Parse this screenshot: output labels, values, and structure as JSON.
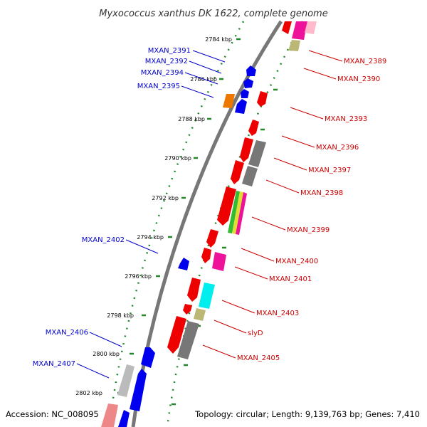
{
  "title": "Myxococcus xanthus DK 1622, complete genome",
  "footer": {
    "accession": "Accession: NC_008095",
    "summary": "Topology: circular; Length: 9,139,763 bp; Genes: 7,410"
  },
  "colors": {
    "backbone": "#777777",
    "dots": "#22882a",
    "ticks": "#22882a",
    "leader_blue": "#0000cc",
    "leader_red": "#cc0000"
  },
  "kbp_ticks": [
    "2784 kbp",
    "2786 kbp",
    "2788 kbp",
    "2790 kbp",
    "2792 kbp",
    "2794 kbp",
    "2796 kbp",
    "2798 kbp",
    "2800 kbp",
    "2802 kbp"
  ],
  "forward_labels": [
    "MXAN_2391",
    "MXAN_2392",
    "MXAN_2394",
    "MXAN_2395",
    "MXAN_2402",
    "MXAN_2406",
    "MXAN_2407"
  ],
  "reverse_labels": [
    "MXAN_2389",
    "MXAN_2390",
    "MXAN_2393",
    "MXAN_2396",
    "MXAN_2397",
    "MXAN_2398",
    "MXAN_2399",
    "MXAN_2400",
    "MXAN_2401",
    "MXAN_2403",
    "slyD",
    "MXAN_2405"
  ]
}
